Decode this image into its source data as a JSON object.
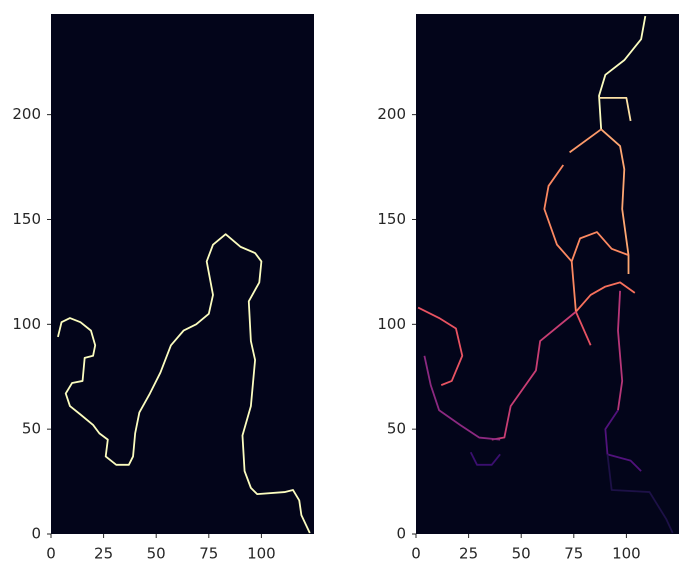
{
  "chart_data": [
    {
      "type": "line",
      "facecolor": "#03051a",
      "xlim": [
        0,
        125
      ],
      "ylim": [
        0,
        248
      ],
      "xticks": [
        0,
        25,
        50,
        75,
        100
      ],
      "yticks": [
        0,
        50,
        100,
        150,
        200
      ],
      "series": [
        {
          "color": "#fcfdbf",
          "x": [
            3.3,
            5,
            9,
            14,
            19,
            21,
            20,
            16,
            15,
            10,
            7,
            9,
            14,
            20,
            23,
            27,
            26,
            31,
            37,
            39,
            40,
            42,
            47,
            52,
            57,
            63,
            69,
            75,
            77,
            74,
            77,
            83,
            90,
            97,
            100,
            99,
            94,
            95,
            97,
            95,
            91,
            92,
            95,
            98,
            111,
            115,
            118,
            119,
            123
          ],
          "values": [
            94,
            101,
            103,
            101,
            97,
            90,
            85,
            84,
            73,
            72,
            67,
            61,
            57,
            52,
            48,
            45,
            37,
            33,
            33,
            37,
            48,
            58,
            67,
            77,
            90,
            97,
            100,
            105,
            114,
            130,
            138,
            143,
            137,
            134,
            130,
            120,
            111,
            92,
            83,
            61,
            47,
            30,
            22,
            19,
            20,
            21,
            16,
            9,
            0.5
          ]
        }
      ]
    },
    {
      "type": "line",
      "facecolor": "#03051a",
      "xlim": [
        0,
        125
      ],
      "ylim": [
        0,
        248
      ],
      "xticks": [
        0,
        25,
        50,
        75,
        100
      ],
      "yticks": [
        0,
        50,
        100,
        150,
        200
      ],
      "series": [
        {
          "color": "#fcfdbf",
          "x": [
            109,
            107,
            99,
            90,
            87,
            88
          ],
          "values": [
            247,
            236,
            226,
            219,
            209,
            193
          ]
        },
        {
          "color": "#fde2a6",
          "x": [
            87,
            100,
            102
          ],
          "values": [
            208,
            208,
            197
          ]
        },
        {
          "color": "#fea772",
          "x": [
            88,
            97,
            99,
            98,
            101,
            101
          ],
          "values": [
            193,
            185,
            174,
            155,
            133,
            124
          ]
        },
        {
          "color": "#fd9a6a",
          "x": [
            73,
            88
          ],
          "values": [
            182,
            193
          ]
        },
        {
          "color": "#fb8861",
          "x": [
            70,
            63,
            61,
            67,
            74,
            76
          ],
          "values": [
            176,
            166,
            155,
            138,
            130,
            106
          ]
        },
        {
          "color": "#fc8961",
          "x": [
            74,
            78,
            86,
            93,
            101
          ],
          "values": [
            130,
            141,
            144,
            136,
            133
          ]
        },
        {
          "color": "#f7705c",
          "x": [
            76,
            83,
            90,
            97,
            104
          ],
          "values": [
            106,
            114,
            118,
            120,
            115
          ]
        },
        {
          "color": "#e75263",
          "x": [
            76,
            83
          ],
          "values": [
            106,
            90
          ]
        },
        {
          "color": "#c83e73",
          "x": [
            76,
            59,
            57,
            45,
            42,
            36
          ],
          "values": [
            106,
            92,
            78,
            61,
            46,
            45
          ]
        },
        {
          "color": "#e85362",
          "x": [
            1,
            11,
            19,
            22,
            17,
            12
          ],
          "values": [
            108,
            103,
            98,
            85,
            73,
            71
          ]
        },
        {
          "color": "#8c2981",
          "x": [
            4,
            7,
            11,
            21,
            30,
            40
          ],
          "values": [
            85,
            71,
            59,
            52,
            46,
            45
          ]
        },
        {
          "color": "#3b0f70",
          "x": [
            26,
            29,
            36,
            40
          ],
          "values": [
            39,
            33,
            33,
            38
          ]
        },
        {
          "color": "#b73779",
          "x": [
            97,
            96,
            98,
            96
          ],
          "values": [
            116,
            97,
            73,
            59
          ]
        },
        {
          "color": "#51127c",
          "x": [
            96,
            90,
            91,
            102,
            107
          ],
          "values": [
            59,
            50,
            38,
            35,
            30
          ]
        },
        {
          "color": "#1d1147",
          "x": [
            91,
            93,
            111,
            119,
            122
          ],
          "values": [
            38,
            21,
            20,
            7,
            0.5
          ]
        }
      ]
    }
  ]
}
